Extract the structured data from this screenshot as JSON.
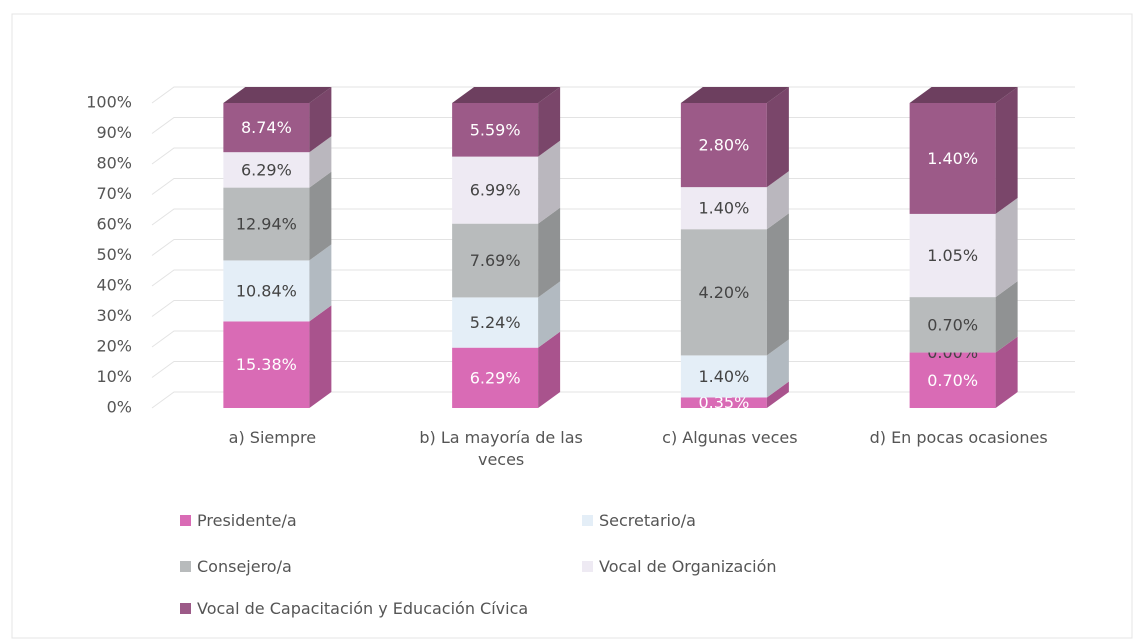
{
  "chart_data": {
    "type": "bar",
    "stacking": "percent",
    "categories": [
      "a) Siempre",
      "b) La mayoría de las veces",
      "c) Algunas veces",
      "d) En pocas ocasiones"
    ],
    "series": [
      {
        "name": "Presidente/a",
        "color": "#d96bb5",
        "values": [
          15.38,
          6.29,
          0.35,
          0.7
        ],
        "value_labels": [
          "15.38%",
          "6.29%",
          "0.35%",
          "0.70%"
        ]
      },
      {
        "name": "Secretario/a",
        "color": "#e4eef7",
        "values": [
          10.84,
          5.24,
          1.4,
          0.0
        ],
        "value_labels": [
          "10.84%",
          "5.24%",
          "1.40%",
          "0.00%"
        ]
      },
      {
        "name": "Consejero/a",
        "color": "#b8bbbc",
        "values": [
          12.94,
          7.69,
          4.2,
          0.7
        ],
        "value_labels": [
          "12.94%",
          "7.69%",
          "4.20%",
          "0.70%"
        ]
      },
      {
        "name": "Vocal de Organización",
        "color": "#eeeaf3",
        "values": [
          6.29,
          6.99,
          1.4,
          1.05
        ],
        "value_labels": [
          "6.29%",
          "6.99%",
          "1.40%",
          "1.05%"
        ]
      },
      {
        "name": "Vocal de Capacitación y Educación Cívica",
        "color": "#9c5a88",
        "values": [
          8.74,
          5.59,
          2.8,
          1.4
        ],
        "value_labels": [
          "8.74%",
          "5.59%",
          "2.80%",
          "1.40%"
        ]
      }
    ],
    "ylim": [
      0,
      100
    ],
    "yticks": [
      {
        "value": 0,
        "label": "0%"
      },
      {
        "value": 10,
        "label": "10%"
      },
      {
        "value": 20,
        "label": "20%"
      },
      {
        "value": 30,
        "label": "30%"
      },
      {
        "value": 40,
        "label": "40%"
      },
      {
        "value": 50,
        "label": "50%"
      },
      {
        "value": 60,
        "label": "60%"
      },
      {
        "value": 70,
        "label": "70%"
      },
      {
        "value": 80,
        "label": "80%"
      },
      {
        "value": 90,
        "label": "90%"
      },
      {
        "value": 100,
        "label": "100%"
      }
    ],
    "grid": true
  }
}
